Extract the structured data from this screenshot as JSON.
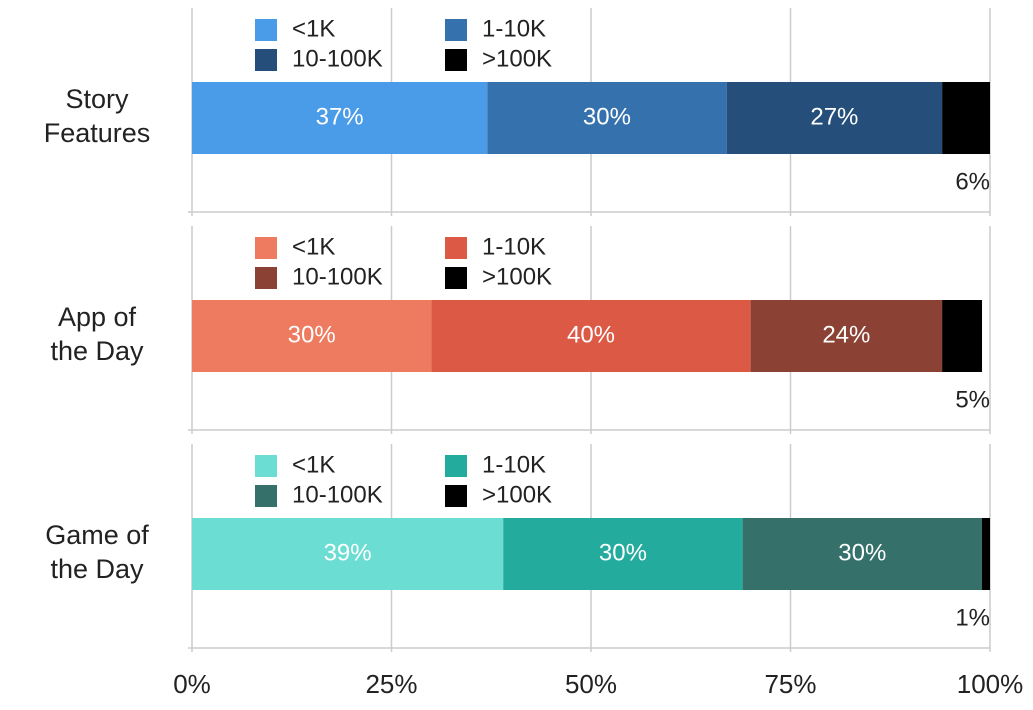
{
  "chart_data": {
    "type": "bar",
    "orientation": "horizontal",
    "stacked": true,
    "grid": true,
    "xlim": [
      0,
      100
    ],
    "xticks": [
      {
        "value": 0,
        "label": "0%"
      },
      {
        "value": 25,
        "label": "25%"
      },
      {
        "value": 50,
        "label": "50%"
      },
      {
        "value": 75,
        "label": "75%"
      },
      {
        "value": 100,
        "label": "100%"
      }
    ],
    "groups": [
      {
        "label": [
          "Story",
          "Features"
        ],
        "series": [
          {
            "name": "<1K",
            "color": "#4a9be8",
            "values": [
              37
            ],
            "value_labels": [
              "37%"
            ]
          },
          {
            "name": "1-10K",
            "color": "#3572ad",
            "values": [
              30
            ],
            "value_labels": [
              "30%"
            ]
          },
          {
            "name": "10-100K",
            "color": "#254f7a",
            "values": [
              27
            ],
            "value_labels": [
              "27%"
            ]
          },
          {
            "name": ">100K",
            "color": "#000000",
            "values": [
              6
            ],
            "value_labels": [
              "6%"
            ]
          }
        ]
      },
      {
        "label": [
          "App of",
          "the Day"
        ],
        "series": [
          {
            "name": "<1K",
            "color": "#ee7a5f",
            "values": [
              30
            ],
            "value_labels": [
              "30%"
            ]
          },
          {
            "name": "1-10K",
            "color": "#dc5a45",
            "values": [
              40
            ],
            "value_labels": [
              "40%"
            ]
          },
          {
            "name": "10-100K",
            "color": "#8b4234",
            "values": [
              24
            ],
            "value_labels": [
              "24%"
            ]
          },
          {
            "name": ">100K",
            "color": "#000000",
            "values": [
              5
            ],
            "value_labels": [
              "5%"
            ]
          }
        ]
      },
      {
        "label": [
          "Game of",
          "the Day"
        ],
        "series": [
          {
            "name": "<1K",
            "color": "#6cddd3",
            "values": [
              39
            ],
            "value_labels": [
              "39%"
            ]
          },
          {
            "name": "1-10K",
            "color": "#23ab9d",
            "values": [
              30
            ],
            "value_labels": [
              "30%"
            ]
          },
          {
            "name": "10-100K",
            "color": "#35716a",
            "values": [
              30
            ],
            "value_labels": [
              "30%"
            ]
          },
          {
            "name": ">100K",
            "color": "#000000",
            "values": [
              1
            ],
            "value_labels": [
              "1%"
            ]
          }
        ]
      }
    ]
  }
}
